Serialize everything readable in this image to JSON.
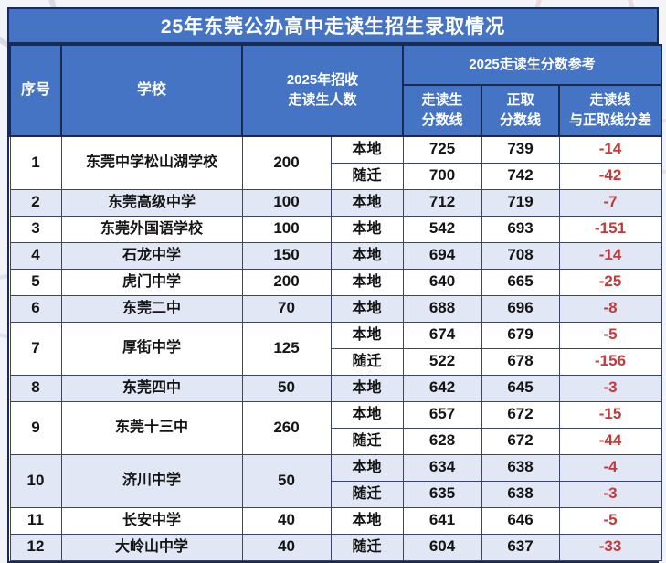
{
  "page_title": "25年东莞公办高中走读生招生录取情况",
  "colors": {
    "header_blue": "#4574c4",
    "border_navy": "#1b2a55",
    "row_alt_blue": "#e2e7f5",
    "negative_red": "#c33a3a",
    "page_background": "#f2f4fa"
  },
  "chart_data": {
    "type": "table",
    "title": "25年东莞公办高中走读生招生录取情况",
    "headers": {
      "no": "序号",
      "school": "学校",
      "count_line1": "2025年招收",
      "count_line2": "走读生人数",
      "score_group": "2025走读生分数参考",
      "day_line1": "走读生",
      "day_line2": "分数线",
      "regular_line1": "正取",
      "regular_line2": "分数线",
      "diff_line1": "走读线",
      "diff_line2": "与正取线分差"
    },
    "rows": [
      {
        "no": "1",
        "school": "东莞中学松山湖学校",
        "count": "200",
        "entries": [
          {
            "type": "本地",
            "day": "725",
            "regular": "739",
            "diff": "-14"
          },
          {
            "type": "随迁",
            "day": "700",
            "regular": "742",
            "diff": "-42"
          }
        ]
      },
      {
        "no": "2",
        "school": "东莞高级中学",
        "count": "100",
        "entries": [
          {
            "type": "本地",
            "day": "712",
            "regular": "719",
            "diff": "-7"
          }
        ]
      },
      {
        "no": "3",
        "school": "东莞外国语学校",
        "count": "100",
        "entries": [
          {
            "type": "本地",
            "day": "542",
            "regular": "693",
            "diff": "-151"
          }
        ]
      },
      {
        "no": "4",
        "school": "石龙中学",
        "count": "150",
        "entries": [
          {
            "type": "本地",
            "day": "694",
            "regular": "708",
            "diff": "-14"
          }
        ]
      },
      {
        "no": "5",
        "school": "虎门中学",
        "count": "200",
        "entries": [
          {
            "type": "本地",
            "day": "640",
            "regular": "665",
            "diff": "-25"
          }
        ]
      },
      {
        "no": "6",
        "school": "东莞二中",
        "count": "70",
        "entries": [
          {
            "type": "本地",
            "day": "688",
            "regular": "696",
            "diff": "-8"
          }
        ]
      },
      {
        "no": "7",
        "school": "厚街中学",
        "count": "125",
        "entries": [
          {
            "type": "本地",
            "day": "674",
            "regular": "679",
            "diff": "-5"
          },
          {
            "type": "随迁",
            "day": "522",
            "regular": "678",
            "diff": "-156"
          }
        ]
      },
      {
        "no": "8",
        "school": "东莞四中",
        "count": "50",
        "entries": [
          {
            "type": "本地",
            "day": "642",
            "regular": "645",
            "diff": "-3"
          }
        ]
      },
      {
        "no": "9",
        "school": "东莞十三中",
        "count": "260",
        "entries": [
          {
            "type": "本地",
            "day": "657",
            "regular": "672",
            "diff": "-15"
          },
          {
            "type": "随迁",
            "day": "628",
            "regular": "672",
            "diff": "-44"
          }
        ]
      },
      {
        "no": "10",
        "school": "济川中学",
        "count": "50",
        "entries": [
          {
            "type": "本地",
            "day": "634",
            "regular": "638",
            "diff": "-4"
          },
          {
            "type": "随迁",
            "day": "635",
            "regular": "638",
            "diff": "-3"
          }
        ]
      },
      {
        "no": "11",
        "school": "长安中学",
        "count": "40",
        "entries": [
          {
            "type": "本地",
            "day": "641",
            "regular": "646",
            "diff": "-5"
          }
        ]
      },
      {
        "no": "12",
        "school": "大岭山中学",
        "count": "40",
        "entries": [
          {
            "type": "随迁",
            "day": "604",
            "regular": "637",
            "diff": "-33"
          }
        ]
      }
    ]
  }
}
